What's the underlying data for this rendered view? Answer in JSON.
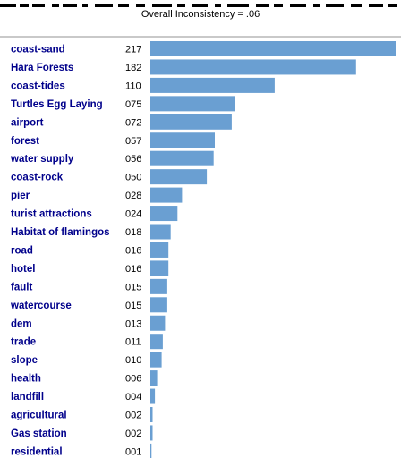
{
  "chart_data": {
    "type": "bar",
    "orientation": "horizontal",
    "title": "Overall Inconsistency = .06",
    "categories": [
      "coast-sand",
      "Hara Forests",
      "coast-tides",
      "Turtles Egg Laying",
      "airport",
      "forest",
      "water supply",
      "coast-rock",
      "pier",
      "turist attractions",
      "Habitat of flamingos",
      "road",
      "hotel",
      "fault",
      "watercourse",
      "dem",
      "trade",
      "slope",
      "health",
      "landfill",
      "agricultural",
      "Gas station",
      "residential"
    ],
    "values": [
      0.217,
      0.182,
      0.11,
      0.075,
      0.072,
      0.057,
      0.056,
      0.05,
      0.028,
      0.024,
      0.018,
      0.016,
      0.016,
      0.015,
      0.015,
      0.013,
      0.011,
      0.01,
      0.006,
      0.004,
      0.002,
      0.002,
      0.001
    ],
    "value_labels": [
      ".217",
      ".182",
      ".110",
      ".075",
      ".072",
      ".057",
      ".056",
      ".050",
      ".028",
      ".024",
      ".018",
      ".016",
      ".016",
      ".015",
      ".015",
      ".013",
      ".011",
      ".010",
      ".006",
      ".004",
      ".002",
      ".002",
      ".001"
    ],
    "grid": false,
    "legend": "none"
  },
  "colors": {
    "bar": "#6a9fd2",
    "category_text": "#00008b",
    "value_text": "#000000",
    "separator": "#c9c9c9"
  }
}
